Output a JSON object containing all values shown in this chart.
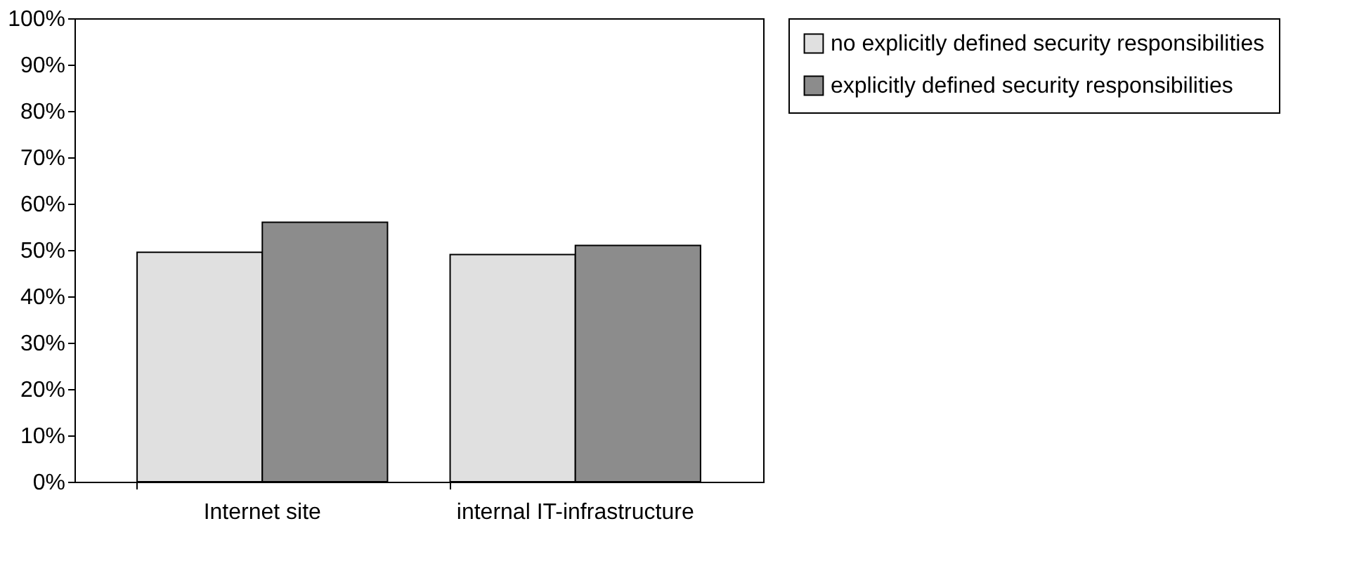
{
  "chart_data": {
    "type": "bar",
    "categories": [
      "Internet site",
      "internal IT-infrastructure"
    ],
    "series": [
      {
        "name": "no explicitly defined security responsibilities",
        "color": "#e0e0e0",
        "values": [
          49.5,
          49
        ]
      },
      {
        "name": "explicitly defined security responsibilities",
        "color": "#8c8c8c",
        "values": [
          56,
          51
        ]
      }
    ],
    "ylim": [
      0,
      100
    ],
    "yticks": [
      {
        "value": 0,
        "label": "0%"
      },
      {
        "value": 10,
        "label": "10%"
      },
      {
        "value": 20,
        "label": "20%"
      },
      {
        "value": 30,
        "label": "30%"
      },
      {
        "value": 40,
        "label": "40%"
      },
      {
        "value": 50,
        "label": "50%"
      },
      {
        "value": 60,
        "label": "60%"
      },
      {
        "value": 70,
        "label": "70%"
      },
      {
        "value": 80,
        "label": "80%"
      },
      {
        "value": 90,
        "label": "90%"
      },
      {
        "value": 100,
        "label": "100%"
      }
    ],
    "grid": false,
    "legend": "right"
  }
}
